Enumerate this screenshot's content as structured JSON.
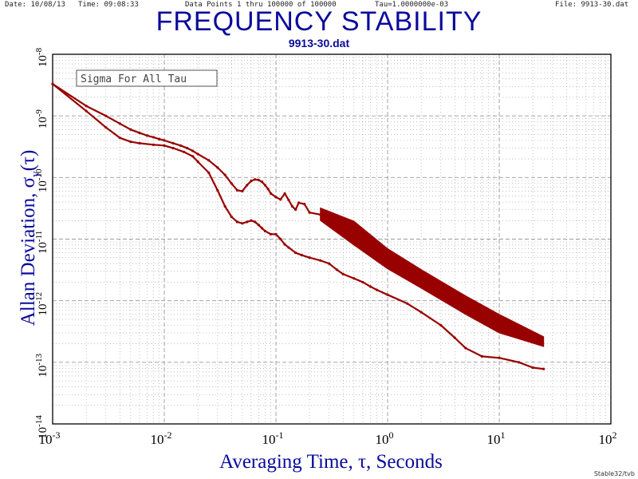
{
  "header": {
    "date": "Date: 10/08/13",
    "time": "Time: 09:08:33",
    "data_points": "Data Points 1 thru 100000 of 100000",
    "tau": "Tau=1.0000000e-03",
    "file": "File: 9913-30.dat"
  },
  "footer": {
    "credit": "Stable32/tvb"
  },
  "colors": {
    "title": "#0a0a9c",
    "series": "#990000",
    "grid": "#9a9a9a"
  },
  "chart_data": {
    "type": "line",
    "title": "FREQUENCY STABILITY",
    "subtitle": "9913-30.dat",
    "legend_box": "Sigma For All Tau",
    "xlabel": "Averaging Time, τ, Seconds",
    "ylabel_main": "Allan Deviation, σ",
    "ylabel_sub": "y",
    "ylabel_tail": "(τ)",
    "xscale": "log",
    "yscale": "log",
    "xlim": [
      0.001,
      100
    ],
    "ylim": [
      1e-14,
      1e-08
    ],
    "grid": true,
    "x_ticks": [
      {
        "value": 0.001,
        "mant": "10",
        "exp": "-3"
      },
      {
        "value": 0.01,
        "mant": "10",
        "exp": "-2"
      },
      {
        "value": 0.1,
        "mant": "10",
        "exp": "-1"
      },
      {
        "value": 1,
        "mant": "10",
        "exp": "0"
      },
      {
        "value": 10,
        "mant": "10",
        "exp": "1"
      },
      {
        "value": 100,
        "mant": "10",
        "exp": "2"
      }
    ],
    "y_ticks": [
      {
        "value": 1e-08,
        "mant": "10",
        "exp": "-8"
      },
      {
        "value": 1e-09,
        "mant": "10",
        "exp": "-9"
      },
      {
        "value": 1e-10,
        "mant": "10",
        "exp": "-10"
      },
      {
        "value": 1e-11,
        "mant": "10",
        "exp": "-11"
      },
      {
        "value": 1e-12,
        "mant": "10",
        "exp": "-12"
      },
      {
        "value": 1e-13,
        "mant": "10",
        "exp": "-13"
      },
      {
        "value": 1e-14,
        "mant": "10",
        "exp": "-14"
      }
    ],
    "series": [
      {
        "style": "markers",
        "x": [
          0.001,
          0.002,
          0.003,
          0.004,
          0.005,
          0.006,
          0.007,
          0.008,
          0.009,
          0.01,
          0.012,
          0.014,
          0.016,
          0.018,
          0.02,
          0.025,
          0.03,
          0.035,
          0.04,
          0.045,
          0.05,
          0.055,
          0.06,
          0.065,
          0.07,
          0.075,
          0.08,
          0.085,
          0.09,
          0.1,
          0.11,
          0.12,
          0.13,
          0.14,
          0.15,
          0.16,
          0.18,
          0.2,
          0.25
        ],
        "y": [
          3.3e-09,
          1.45e-09,
          1e-09,
          7.5e-10,
          6e-10,
          5.3e-10,
          4.8e-10,
          4.5e-10,
          4.2e-10,
          4e-10,
          3.6e-10,
          3.3e-10,
          3e-10,
          2.7e-10,
          2.4e-10,
          1.9e-10,
          1.45e-10,
          1.1e-10,
          8e-11,
          6.2e-11,
          6e-11,
          7.5e-11,
          8.8e-11,
          9.3e-11,
          9.1e-11,
          8.5e-11,
          7.5e-11,
          6.5e-11,
          5.5e-11,
          4.8e-11,
          4.4e-11,
          5.5e-11,
          4.3e-11,
          3.4e-11,
          3e-11,
          3.9e-11,
          3.7e-11,
          2.7e-11,
          2.5e-11
        ]
      },
      {
        "style": "band",
        "x": [
          0.25,
          0.5,
          1,
          2,
          5,
          10,
          25
        ],
        "y_upper": [
          3.2e-11,
          1.95e-11,
          7e-12,
          3.2e-12,
          1.2e-12,
          6e-13,
          2.6e-13
        ],
        "y_lower": [
          2e-11,
          8e-12,
          3.3e-12,
          1.6e-12,
          6e-13,
          3e-13,
          1.8e-13
        ]
      },
      {
        "style": "markers",
        "x": [
          0.001,
          0.002,
          0.003,
          0.004,
          0.005,
          0.006,
          0.008,
          0.01,
          0.012,
          0.015,
          0.018,
          0.02,
          0.025,
          0.03,
          0.035,
          0.04,
          0.045,
          0.05,
          0.055,
          0.06,
          0.065,
          0.07,
          0.075,
          0.08,
          0.09,
          0.1,
          0.11,
          0.12,
          0.13,
          0.15,
          0.17,
          0.2,
          0.25,
          0.3,
          0.35,
          0.4,
          0.5,
          0.6,
          0.7,
          0.8,
          1,
          1.5,
          2,
          3,
          4,
          5,
          7,
          10,
          15,
          20,
          25
        ],
        "y": [
          3.3e-09,
          1.2e-09,
          6.5e-10,
          4.4e-10,
          3.8e-10,
          3.6e-10,
          3.4e-10,
          3.3e-10,
          3e-10,
          2.6e-10,
          2.2e-10,
          1.8e-10,
          1.2e-10,
          6.2e-11,
          3.4e-11,
          2.3e-11,
          1.9e-11,
          1.8e-11,
          1.9e-11,
          2e-11,
          1.9e-11,
          1.7e-11,
          1.5e-11,
          1.35e-11,
          1.2e-11,
          1.2e-11,
          1e-11,
          8.2e-12,
          7.3e-12,
          6e-12,
          5.5e-12,
          5e-12,
          4.5e-12,
          4e-12,
          3.2e-12,
          2.7e-12,
          2.3e-12,
          2e-12,
          1.7e-12,
          1.5e-12,
          1.25e-12,
          9e-13,
          6.5e-13,
          4e-13,
          2.5e-13,
          1.7e-13,
          1.25e-13,
          1.18e-13,
          1e-13,
          8.2e-14,
          7.8e-14
        ]
      }
    ]
  }
}
